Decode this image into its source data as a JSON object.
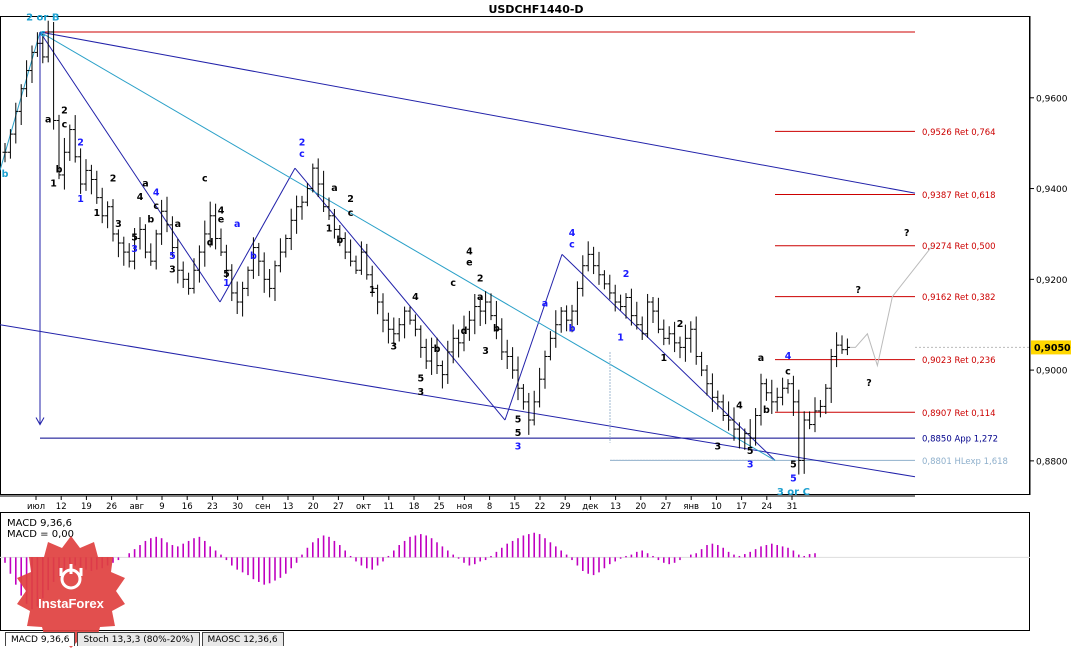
{
  "window": {
    "title": "USDCHF1440-D"
  },
  "colors": {
    "bar": "#000000",
    "resistance": "#cc0000",
    "support_red": "#cc0000",
    "support_blue": "#00008b",
    "projection": "#9fb8d0",
    "channel_navy": "#2222aa",
    "channel_teal": "#2aa0c8",
    "wave_black": "#000000",
    "wave_blue": "#1a1aff",
    "wave_teal": "#1ca0d0",
    "macd_hist": "#c000c0",
    "price_label_bg": "#ffd700"
  },
  "chart_data": [
    {
      "type": "candlestick",
      "title": "USDCHF1440-D",
      "ylim": [
        0.8727,
        0.9778
      ],
      "y_ticks": [
        0.96,
        0.94,
        0.92,
        0.9,
        0.88
      ],
      "y_tick_labels": [
        "0,9600",
        "0,9400",
        "0,9200",
        "0,9000",
        "0,8800"
      ],
      "current_price": 0.905,
      "current_price_label": "0,9050",
      "x_tick_labels": [
        "июл",
        "12",
        "19",
        "26",
        "авг",
        "9",
        "16",
        "23",
        "30",
        "сен",
        "13",
        "20",
        "27",
        "окт",
        "11",
        "18",
        "25",
        "ноя",
        "8",
        "15",
        "22",
        "29",
        "дек",
        "13",
        "20",
        "27",
        "янв",
        "10",
        "17",
        "24",
        "31"
      ],
      "levels": [
        {
          "value": 0.9526,
          "label": "0,9526 Ret 0,764",
          "color": "#cc0000"
        },
        {
          "value": 0.9387,
          "label": "0,9387 Ret 0,618",
          "color": "#cc0000"
        },
        {
          "value": 0.9274,
          "label": "0,9274 Ret 0,500",
          "color": "#cc0000"
        },
        {
          "value": 0.9162,
          "label": "0,9162 Ret 0,382",
          "color": "#cc0000"
        },
        {
          "value": 0.9023,
          "label": "0,9023 Ret 0,236",
          "color": "#cc0000"
        },
        {
          "value": 0.8907,
          "label": "0,8907 Ret 0,114",
          "color": "#cc0000"
        },
        {
          "value": 0.885,
          "label": "0,8850 App 1,272",
          "color": "#00008b"
        },
        {
          "value": 0.8801,
          "label": "0,8801 HLexp 1,618",
          "color": "#8fb0cc"
        }
      ],
      "top_level": 0.9745,
      "price_path": [
        0.948,
        0.952,
        0.957,
        0.962,
        0.966,
        0.97,
        0.972,
        0.969,
        0.9745,
        0.955,
        0.943,
        0.948,
        0.953,
        0.947,
        0.941,
        0.944,
        0.942,
        0.938,
        0.934,
        0.936,
        0.93,
        0.928,
        0.926,
        0.924,
        0.929,
        0.931,
        0.926,
        0.924,
        0.93,
        0.935,
        0.932,
        0.927,
        0.922,
        0.92,
        0.918,
        0.922,
        0.926,
        0.93,
        0.934,
        0.929,
        0.926,
        0.922,
        0.917,
        0.915,
        0.918,
        0.922,
        0.927,
        0.924,
        0.92,
        0.918,
        0.923,
        0.926,
        0.929,
        0.933,
        0.936,
        0.937,
        0.94,
        0.9445,
        0.941,
        0.936,
        0.934,
        0.931,
        0.929,
        0.926,
        0.924,
        0.922,
        0.926,
        0.921,
        0.918,
        0.915,
        0.911,
        0.909,
        0.908,
        0.91,
        0.913,
        0.911,
        0.909,
        0.905,
        0.902,
        0.905,
        0.901,
        0.899,
        0.904,
        0.907,
        0.906,
        0.909,
        0.911,
        0.914,
        0.913,
        0.915,
        0.912,
        0.909,
        0.904,
        0.903,
        0.9,
        0.896,
        0.893,
        0.889,
        0.893,
        0.898,
        0.903,
        0.907,
        0.91,
        0.913,
        0.911,
        0.913,
        0.918,
        0.923,
        0.9255,
        0.923,
        0.921,
        0.919,
        0.917,
        0.915,
        0.914,
        0.916,
        0.912,
        0.91,
        0.908,
        0.915,
        0.913,
        0.909,
        0.907,
        0.908,
        0.906,
        0.905,
        0.907,
        0.909,
        0.903,
        0.9,
        0.897,
        0.894,
        0.893,
        0.89,
        0.889,
        0.887,
        0.885,
        0.886,
        0.885,
        0.89,
        0.897,
        0.895,
        0.893,
        0.894,
        0.896,
        0.897,
        0.893,
        0.8801,
        0.889,
        0.888,
        0.891,
        0.892,
        0.896,
        0.903,
        0.9055,
        0.9045,
        0.905
      ],
      "projection_path": [
        [
          0.905,
          0.901
        ],
        [
          0.908,
          0.901
        ],
        [
          0.901,
          0.9045
        ],
        [
          0.9162,
          0.9005
        ],
        [
          0.9274,
          0.9005
        ]
      ],
      "wave_labels": [
        {
          "t": "2 or B",
          "bar": 7,
          "price": 0.977,
          "c": "teal"
        },
        {
          "t": "c",
          "bar": 7,
          "price": 0.9735,
          "c": "teal"
        },
        {
          "t": "b",
          "bar": 0,
          "price": 0.9425,
          "c": "teal"
        },
        {
          "t": "a",
          "bar": 8,
          "price": 0.9545,
          "c": "black"
        },
        {
          "t": "2",
          "bar": 11,
          "price": 0.9565,
          "c": "black"
        },
        {
          "t": "c",
          "bar": 11,
          "price": 0.9535,
          "c": "black"
        },
        {
          "t": "b",
          "bar": 10,
          "price": 0.9435,
          "c": "black"
        },
        {
          "t": "1",
          "bar": 9,
          "price": 0.9405,
          "c": "black"
        },
        {
          "t": "2",
          "bar": 14,
          "price": 0.9495,
          "c": "blue"
        },
        {
          "t": "1",
          "bar": 14,
          "price": 0.937,
          "c": "blue"
        },
        {
          "t": "2",
          "bar": 20,
          "price": 0.9415,
          "c": "black"
        },
        {
          "t": "1",
          "bar": 17,
          "price": 0.934,
          "c": "black"
        },
        {
          "t": "a",
          "bar": 26,
          "price": 0.9405,
          "c": "black"
        },
        {
          "t": "4",
          "bar": 25,
          "price": 0.9375,
          "c": "black"
        },
        {
          "t": "4",
          "bar": 28,
          "price": 0.9385,
          "c": "blue"
        },
        {
          "t": "c",
          "bar": 28,
          "price": 0.9355,
          "c": "black"
        },
        {
          "t": "3",
          "bar": 21,
          "price": 0.9315,
          "c": "black"
        },
        {
          "t": "b",
          "bar": 27,
          "price": 0.9325,
          "c": "black"
        },
        {
          "t": "5",
          "bar": 24,
          "price": 0.9285,
          "c": "black"
        },
        {
          "t": "3",
          "bar": 24,
          "price": 0.926,
          "c": "blue"
        },
        {
          "t": "a",
          "bar": 32,
          "price": 0.9315,
          "c": "black"
        },
        {
          "t": "5",
          "bar": 31,
          "price": 0.9245,
          "c": "blue"
        },
        {
          "t": "3",
          "bar": 31,
          "price": 0.9215,
          "c": "black"
        },
        {
          "t": "c",
          "bar": 37,
          "price": 0.9415,
          "c": "black"
        },
        {
          "t": "4",
          "bar": 40,
          "price": 0.9345,
          "c": "black"
        },
        {
          "t": "e",
          "bar": 40,
          "price": 0.9325,
          "c": "black"
        },
        {
          "t": "a",
          "bar": 43,
          "price": 0.9315,
          "c": "blue"
        },
        {
          "t": "d",
          "bar": 38,
          "price": 0.9275,
          "c": "black"
        },
        {
          "t": "5",
          "bar": 41,
          "price": 0.9205,
          "c": "black"
        },
        {
          "t": "1",
          "bar": 41,
          "price": 0.9185,
          "c": "blue"
        },
        {
          "t": "b",
          "bar": 46,
          "price": 0.9245,
          "c": "blue"
        },
        {
          "t": "2",
          "bar": 55,
          "price": 0.9495,
          "c": "blue"
        },
        {
          "t": "c",
          "bar": 55,
          "price": 0.947,
          "c": "blue"
        },
        {
          "t": "a",
          "bar": 61,
          "price": 0.9395,
          "c": "black"
        },
        {
          "t": "2",
          "bar": 64,
          "price": 0.937,
          "c": "black"
        },
        {
          "t": "c",
          "bar": 64,
          "price": 0.934,
          "c": "black"
        },
        {
          "t": "1",
          "bar": 60,
          "price": 0.9305,
          "c": "black"
        },
        {
          "t": "b",
          "bar": 62,
          "price": 0.928,
          "c": "black"
        },
        {
          "t": "1",
          "bar": 68,
          "price": 0.917,
          "c": "black"
        },
        {
          "t": "4",
          "bar": 76,
          "price": 0.9155,
          "c": "black"
        },
        {
          "t": "3",
          "bar": 72,
          "price": 0.9045,
          "c": "black"
        },
        {
          "t": "5",
          "bar": 77,
          "price": 0.8975,
          "c": "black"
        },
        {
          "t": "3",
          "bar": 77,
          "price": 0.8945,
          "c": "black"
        },
        {
          "t": "b",
          "bar": 80,
          "price": 0.904,
          "c": "black"
        },
        {
          "t": "4",
          "bar": 86,
          "price": 0.9255,
          "c": "black"
        },
        {
          "t": "e",
          "bar": 86,
          "price": 0.923,
          "c": "black"
        },
        {
          "t": "2",
          "bar": 88,
          "price": 0.9195,
          "c": "black"
        },
        {
          "t": "c",
          "bar": 83,
          "price": 0.9185,
          "c": "black"
        },
        {
          "t": "a",
          "bar": 88,
          "price": 0.9155,
          "c": "black"
        },
        {
          "t": "d",
          "bar": 85,
          "price": 0.908,
          "c": "black"
        },
        {
          "t": "b",
          "bar": 91,
          "price": 0.9085,
          "c": "black"
        },
        {
          "t": "3",
          "bar": 89,
          "price": 0.9035,
          "c": "black"
        },
        {
          "t": "5",
          "bar": 95,
          "price": 0.8885,
          "c": "black"
        },
        {
          "t": "5",
          "bar": 95,
          "price": 0.8855,
          "c": "black"
        },
        {
          "t": "3",
          "bar": 95,
          "price": 0.8825,
          "c": "blue"
        },
        {
          "t": "a",
          "bar": 100,
          "price": 0.914,
          "c": "blue"
        },
        {
          "t": "4",
          "bar": 105,
          "price": 0.9295,
          "c": "blue"
        },
        {
          "t": "c",
          "bar": 105,
          "price": 0.927,
          "c": "blue"
        },
        {
          "t": "b",
          "bar": 105,
          "price": 0.9085,
          "c": "blue"
        },
        {
          "t": "2",
          "bar": 115,
          "price": 0.9205,
          "c": "blue"
        },
        {
          "t": "1",
          "bar": 114,
          "price": 0.9065,
          "c": "blue"
        },
        {
          "t": "1",
          "bar": 122,
          "price": 0.902,
          "c": "black"
        },
        {
          "t": "2",
          "bar": 125,
          "price": 0.9095,
          "c": "black"
        },
        {
          "t": "4",
          "bar": 136,
          "price": 0.8915,
          "c": "black"
        },
        {
          "t": "3",
          "bar": 132,
          "price": 0.8825,
          "c": "black"
        },
        {
          "t": "5",
          "bar": 138,
          "price": 0.8815,
          "c": "black"
        },
        {
          "t": "3",
          "bar": 138,
          "price": 0.8785,
          "c": "blue"
        },
        {
          "t": "a",
          "bar": 140,
          "price": 0.902,
          "c": "black"
        },
        {
          "t": "4",
          "bar": 145,
          "price": 0.9025,
          "c": "blue"
        },
        {
          "t": "c",
          "bar": 145,
          "price": 0.899,
          "c": "black"
        },
        {
          "t": "b",
          "bar": 141,
          "price": 0.8905,
          "c": "black"
        },
        {
          "t": "5",
          "bar": 146,
          "price": 0.8785,
          "c": "black"
        },
        {
          "t": "5",
          "bar": 146,
          "price": 0.8755,
          "c": "blue"
        },
        {
          "t": "3 or C",
          "bar": 146,
          "price": 0.8725,
          "c": "teal"
        },
        {
          "t": "?",
          "bar": 167,
          "price": 0.9295,
          "c": "black"
        },
        {
          "t": "?",
          "bar": 158,
          "price": 0.917,
          "c": "black"
        },
        {
          "t": "?",
          "bar": 160,
          "price": 0.8965,
          "c": "black"
        }
      ]
    },
    {
      "type": "bar",
      "title": "MACD 9,36,6",
      "subtitle": "MACD = 0,00",
      "histogram": [
        -0.2,
        -0.6,
        -1.0,
        -1.4,
        -1.7,
        -1.9,
        -1.8,
        -1.5,
        -1.2,
        -0.9,
        -0.7,
        -0.5,
        -0.4,
        -0.3,
        -0.35,
        -0.45,
        -0.5,
        -0.45,
        -0.4,
        -0.3,
        -0.2,
        -0.1,
        0.0,
        0.15,
        0.3,
        0.45,
        0.6,
        0.7,
        0.75,
        0.7,
        0.55,
        0.45,
        0.4,
        0.5,
        0.6,
        0.7,
        0.75,
        0.6,
        0.4,
        0.25,
        0.1,
        -0.1,
        -0.3,
        -0.45,
        -0.55,
        -0.65,
        -0.8,
        -0.9,
        -1.0,
        -0.95,
        -0.85,
        -0.75,
        -0.6,
        -0.4,
        -0.2,
        0.1,
        0.35,
        0.55,
        0.7,
        0.8,
        0.75,
        0.6,
        0.45,
        0.25,
        0.05,
        -0.15,
        -0.3,
        -0.4,
        -0.45,
        -0.3,
        -0.15,
        0.05,
        0.25,
        0.45,
        0.6,
        0.75,
        0.8,
        0.85,
        0.8,
        0.7,
        0.55,
        0.4,
        0.25,
        0.1,
        -0.05,
        -0.2,
        -0.3,
        -0.25,
        -0.15,
        -0.1,
        0.05,
        0.2,
        0.35,
        0.5,
        0.6,
        0.7,
        0.8,
        0.85,
        0.9,
        0.85,
        0.7,
        0.55,
        0.4,
        0.25,
        0.1,
        -0.1,
        -0.3,
        -0.5,
        -0.6,
        -0.65,
        -0.55,
        -0.4,
        -0.25,
        -0.15,
        -0.05,
        0.05,
        0.1,
        0.2,
        0.25,
        0.15,
        0.05,
        -0.1,
        -0.2,
        -0.25,
        -0.2,
        -0.1,
        0.0,
        0.1,
        0.15,
        0.3,
        0.45,
        0.5,
        0.45,
        0.35,
        0.2,
        0.1,
        0.05,
        0.12,
        0.2,
        0.3,
        0.4,
        0.45,
        0.5,
        0.45,
        0.4,
        0.35,
        0.25,
        0.1,
        0.05,
        0.12,
        0.15
      ],
      "hist_range": [
        -2.0,
        1.0
      ]
    }
  ],
  "tabs": [
    {
      "label": "MACD 9,36,6",
      "active": true
    },
    {
      "label": "Stoch 13,3,3 (80%-20%)",
      "active": false
    },
    {
      "label": "MAOSC 12,36,6",
      "active": false
    }
  ],
  "logo": {
    "text": "InstaForex"
  }
}
